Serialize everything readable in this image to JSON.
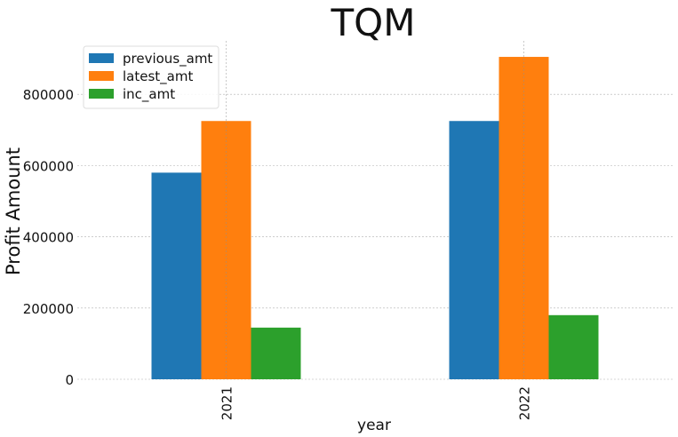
{
  "chart_data": {
    "type": "bar",
    "title": "TQM",
    "xlabel": "year",
    "ylabel": "Profit Amount",
    "categories": [
      "2021",
      "2022"
    ],
    "series": [
      {
        "name": "previous_amt",
        "color": "#1f77b4",
        "values": [
          580000,
          725000
        ]
      },
      {
        "name": "latest_amt",
        "color": "#ff7f0e",
        "values": [
          725000,
          905000
        ]
      },
      {
        "name": "inc_amt",
        "color": "#2ca02c",
        "values": [
          145000,
          180000
        ]
      }
    ],
    "yticks": [
      0,
      200000,
      400000,
      600000,
      800000
    ],
    "ylim": [
      0,
      950000
    ],
    "grid": true,
    "legend_position": "top-left"
  }
}
